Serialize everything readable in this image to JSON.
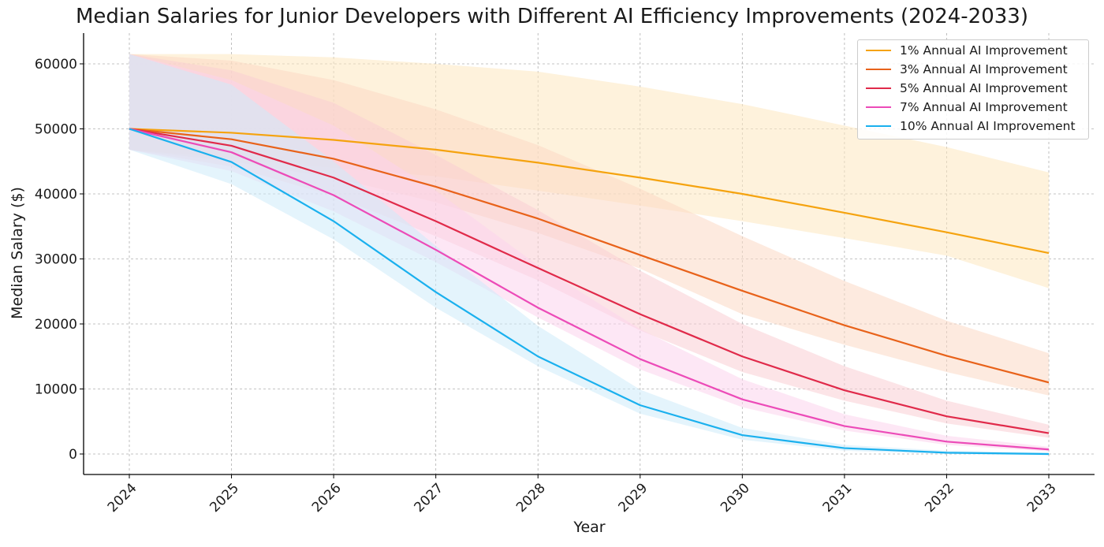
{
  "chart_data": {
    "type": "line",
    "title": "Median Salaries for Junior Developers with Different AI Efficiency Improvements (2024-2033)",
    "xlabel": "Year",
    "ylabel": "Median Salary ($)",
    "x": [
      2024,
      2025,
      2026,
      2027,
      2028,
      2029,
      2030,
      2031,
      2032,
      2033
    ],
    "x_tick_labels": [
      "2024",
      "2025",
      "2026",
      "2027",
      "2028",
      "2029",
      "2030",
      "2031",
      "2032",
      "2033"
    ],
    "y_ticks": [
      0,
      10000,
      20000,
      30000,
      40000,
      50000,
      60000
    ],
    "y_tick_labels": [
      "0",
      "10000",
      "20000",
      "30000",
      "40000",
      "50000",
      "60000"
    ],
    "ylim": [
      -3200,
      65000
    ],
    "grid": true,
    "legend_position": "top-right",
    "series": [
      {
        "name": "1% Annual AI Improvement",
        "color": "#f5a30f",
        "band_color": "#fde7bf",
        "values": [
          50000,
          49400,
          48300,
          46800,
          44800,
          42500,
          40000,
          37100,
          34100,
          30900
        ],
        "lower": [
          46800,
          45500,
          44000,
          42700,
          40500,
          38200,
          35800,
          33200,
          30500,
          25500
        ],
        "upper": [
          61500,
          61500,
          61000,
          60000,
          58800,
          56500,
          53800,
          50500,
          47200,
          43300
        ]
      },
      {
        "name": "3% Annual AI Improvement",
        "color": "#e8621a",
        "band_color": "#fbd8c4",
        "values": [
          50000,
          48400,
          45400,
          41100,
          36200,
          30600,
          25100,
          19800,
          15100,
          11000
        ],
        "lower": [
          46800,
          45000,
          42500,
          38700,
          34000,
          28500,
          21500,
          16800,
          12600,
          9000
        ],
        "upper": [
          61500,
          60500,
          57500,
          53000,
          47500,
          40800,
          33500,
          26600,
          20500,
          15500
        ]
      },
      {
        "name": "5% Annual AI Improvement",
        "color": "#e02a4a",
        "band_color": "#f9cdd3",
        "values": [
          50000,
          47400,
          42500,
          35800,
          28600,
          21500,
          15000,
          9800,
          5800,
          3200
        ],
        "lower": [
          46800,
          44200,
          39700,
          33500,
          26700,
          19000,
          12600,
          8200,
          4700,
          2500
        ],
        "upper": [
          61500,
          59000,
          54000,
          46000,
          37500,
          28200,
          20000,
          13500,
          8200,
          4500
        ]
      },
      {
        "name": "7% Annual AI Improvement",
        "color": "#ec4bb8",
        "band_color": "#fbd3ec",
        "values": [
          50000,
          46400,
          39800,
          31400,
          22500,
          14600,
          8400,
          4300,
          1900,
          700
        ],
        "lower": [
          46800,
          43500,
          37300,
          29500,
          21000,
          13000,
          7200,
          3600,
          1400,
          400
        ],
        "upper": [
          61500,
          57500,
          50500,
          40500,
          29000,
          19200,
          11500,
          6100,
          2800,
          1100
        ]
      },
      {
        "name": "10% Annual AI Improvement",
        "color": "#1ab0ee",
        "band_color": "#cdebfa",
        "values": [
          50000,
          44900,
          35800,
          24900,
          15000,
          7500,
          2900,
          900,
          200,
          0
        ],
        "lower": [
          46800,
          41500,
          33000,
          22500,
          13500,
          6200,
          2200,
          500,
          0,
          -200
        ],
        "upper": [
          61500,
          56800,
          45000,
          32000,
          19700,
          9900,
          4000,
          1400,
          500,
          200
        ]
      }
    ]
  }
}
